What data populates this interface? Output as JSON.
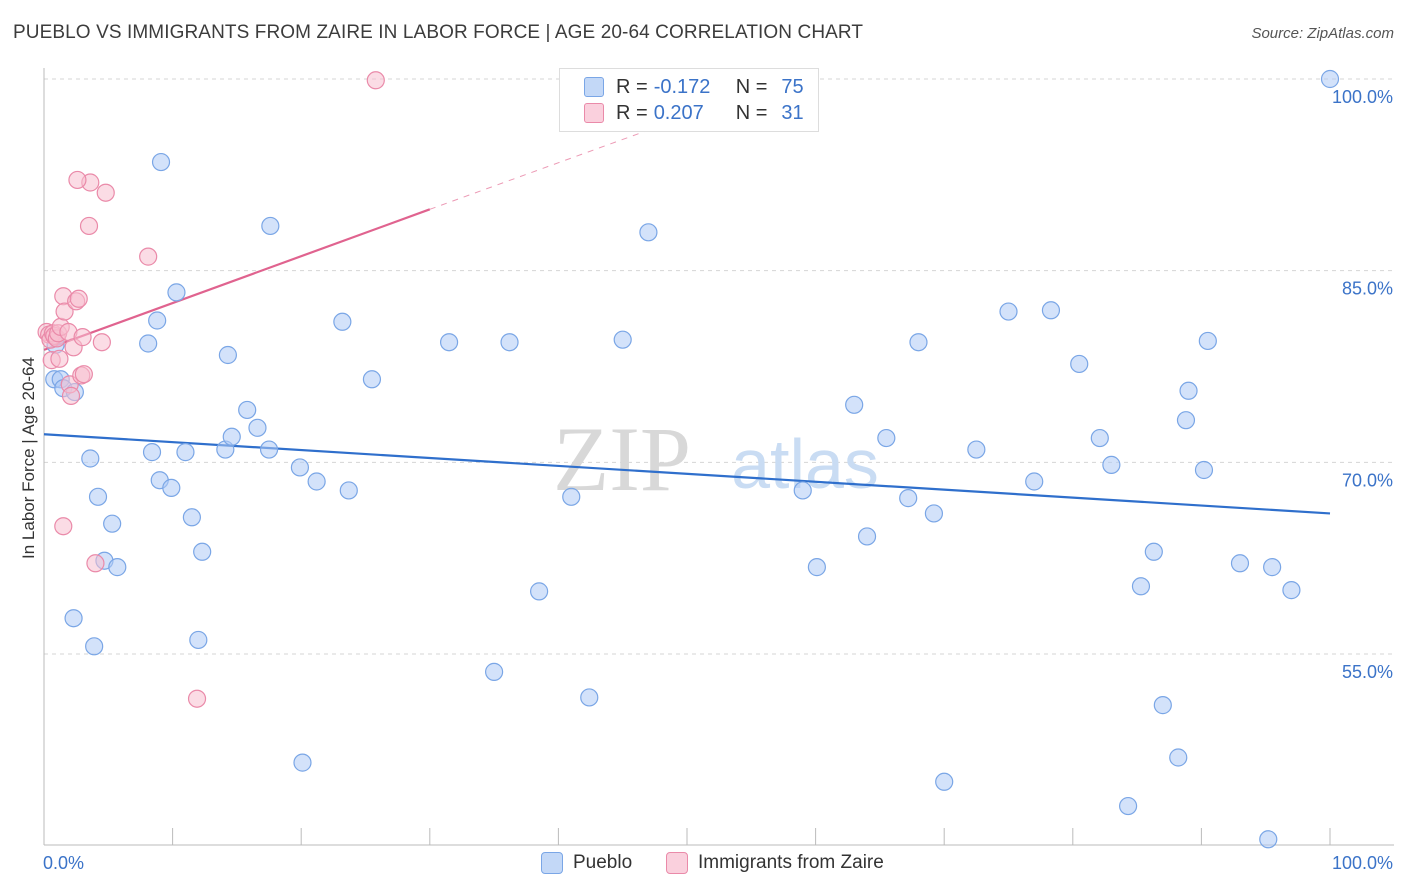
{
  "title": "PUEBLO VS IMMIGRANTS FROM ZAIRE IN LABOR FORCE | AGE 20-64 CORRELATION CHART",
  "source": "Source: ZipAtlas.com",
  "watermark": {
    "zip": "ZIP",
    "atlas": "atlas"
  },
  "colors": {
    "pueblo_fill": "#aecbf5",
    "pueblo_stroke": "#7aa6e6",
    "pueblo_line": "#2f6fcc",
    "zaire_fill": "#f7bfd0",
    "zaire_stroke": "#ea8aa9",
    "zaire_line": "#e0638f",
    "axis_text": "#3b73c8",
    "grid": "#d5d5d5"
  },
  "legend_top": [
    {
      "label_r": "R =",
      "r": "-0.172",
      "label_n": "N =",
      "n": "75",
      "series": "Pueblo"
    },
    {
      "label_r": "R =",
      "r": "0.207",
      "label_n": "N =",
      "n": "31",
      "series": "Immigrants from Zaire"
    }
  ],
  "legend_bottom": [
    {
      "name": "Pueblo"
    },
    {
      "name": "Immigrants from Zaire"
    }
  ],
  "chart_data": {
    "type": "scatter",
    "title": "PUEBLO VS IMMIGRANTS FROM ZAIRE IN LABOR FORCE | AGE 20-64 CORRELATION CHART",
    "xlabel": "",
    "ylabel": "In Labor Force | Age 20-64",
    "xlim": [
      0,
      100
    ],
    "ylim": [
      40.5,
      102
    ],
    "x_tick_labels": [
      {
        "value": 0,
        "label": "0.0%"
      },
      {
        "value": 100,
        "label": "100.0%"
      }
    ],
    "y_tick_labels": [
      {
        "value": 55,
        "label": "55.0%"
      },
      {
        "value": 70,
        "label": "70.0%"
      },
      {
        "value": 85,
        "label": "85.0%"
      },
      {
        "value": 100,
        "label": "100.0%"
      }
    ],
    "grid": true,
    "series": [
      {
        "name": "Pueblo",
        "points": [
          [
            0.8,
            76.5
          ],
          [
            0.9,
            79.2
          ],
          [
            1.3,
            76.5
          ],
          [
            1.5,
            75.8
          ],
          [
            2.4,
            75.5
          ],
          [
            3.6,
            70.3
          ],
          [
            4.2,
            67.3
          ],
          [
            5.3,
            65.2
          ],
          [
            2.3,
            57.8
          ],
          [
            3.9,
            55.6
          ],
          [
            4.7,
            62.3
          ],
          [
            5.7,
            61.8
          ],
          [
            8.1,
            79.3
          ],
          [
            8.4,
            70.8
          ],
          [
            8.8,
            81.1
          ],
          [
            9.0,
            68.6
          ],
          [
            9.1,
            93.5
          ],
          [
            9.9,
            68.0
          ],
          [
            10.3,
            83.3
          ],
          [
            11.0,
            70.8
          ],
          [
            11.5,
            65.7
          ],
          [
            12.0,
            56.1
          ],
          [
            12.3,
            63.0
          ],
          [
            14.3,
            78.4
          ],
          [
            14.1,
            71.0
          ],
          [
            14.6,
            72.0
          ],
          [
            15.8,
            74.1
          ],
          [
            16.6,
            72.7
          ],
          [
            17.5,
            71.0
          ],
          [
            17.6,
            88.5
          ],
          [
            19.9,
            69.6
          ],
          [
            20.1,
            46.5
          ],
          [
            21.2,
            68.5
          ],
          [
            23.2,
            81.0
          ],
          [
            23.7,
            67.8
          ],
          [
            25.5,
            76.5
          ],
          [
            31.5,
            79.4
          ],
          [
            35.0,
            53.6
          ],
          [
            36.2,
            79.4
          ],
          [
            38.5,
            59.9
          ],
          [
            41.0,
            67.3
          ],
          [
            42.0,
            100.0
          ],
          [
            42.4,
            51.6
          ],
          [
            45.0,
            79.6
          ],
          [
            47.0,
            88.0
          ],
          [
            59.0,
            67.8
          ],
          [
            60.1,
            61.8
          ],
          [
            63.0,
            74.5
          ],
          [
            64.0,
            64.2
          ],
          [
            65.5,
            71.9
          ],
          [
            67.2,
            67.2
          ],
          [
            68.0,
            79.4
          ],
          [
            69.2,
            66.0
          ],
          [
            70.0,
            45.0
          ],
          [
            72.5,
            71.0
          ],
          [
            75.0,
            81.8
          ],
          [
            77.0,
            68.5
          ],
          [
            78.3,
            81.9
          ],
          [
            80.5,
            77.7
          ],
          [
            82.1,
            71.9
          ],
          [
            83.0,
            69.8
          ],
          [
            84.3,
            43.1
          ],
          [
            85.3,
            60.3
          ],
          [
            86.3,
            63.0
          ],
          [
            87.0,
            51.0
          ],
          [
            88.2,
            46.9
          ],
          [
            88.8,
            73.3
          ],
          [
            89.0,
            75.6
          ],
          [
            90.2,
            69.4
          ],
          [
            90.5,
            79.5
          ],
          [
            93.0,
            62.1
          ],
          [
            95.2,
            40.5
          ],
          [
            95.5,
            61.8
          ],
          [
            97.0,
            60.0
          ],
          [
            100.0,
            100.0
          ]
        ]
      },
      {
        "name": "Immigrants from Zaire",
        "points": [
          [
            0.2,
            80.2
          ],
          [
            0.4,
            80.0
          ],
          [
            0.5,
            79.6
          ],
          [
            0.6,
            78.0
          ],
          [
            0.7,
            80.1
          ],
          [
            0.8,
            79.9
          ],
          [
            1.0,
            79.7
          ],
          [
            1.1,
            80.1
          ],
          [
            1.2,
            78.1
          ],
          [
            1.3,
            80.6
          ],
          [
            1.5,
            83.0
          ],
          [
            1.6,
            81.8
          ],
          [
            1.9,
            80.2
          ],
          [
            2.0,
            76.1
          ],
          [
            2.1,
            75.2
          ],
          [
            2.3,
            79.0
          ],
          [
            2.5,
            82.6
          ],
          [
            2.7,
            82.8
          ],
          [
            2.9,
            76.8
          ],
          [
            3.0,
            79.8
          ],
          [
            3.1,
            76.9
          ],
          [
            4.5,
            79.4
          ],
          [
            1.5,
            65.0
          ],
          [
            3.6,
            91.9
          ],
          [
            4.0,
            62.1
          ],
          [
            3.5,
            88.5
          ],
          [
            4.8,
            91.1
          ],
          [
            8.1,
            86.1
          ],
          [
            11.9,
            51.5
          ],
          [
            25.8,
            99.9
          ],
          [
            2.6,
            92.1
          ]
        ]
      }
    ],
    "trendlines": [
      {
        "series": "Pueblo",
        "from": [
          0,
          72.2
        ],
        "to": [
          100,
          66.0
        ],
        "style": "solid"
      },
      {
        "series": "Immigrants from Zaire",
        "from": [
          0,
          78.8
        ],
        "to": [
          30,
          89.8
        ],
        "style": "solid"
      },
      {
        "series": "Immigrants from Zaire",
        "from": [
          30,
          89.8
        ],
        "to": [
          47,
          96.0
        ],
        "style": "dashed"
      }
    ]
  }
}
